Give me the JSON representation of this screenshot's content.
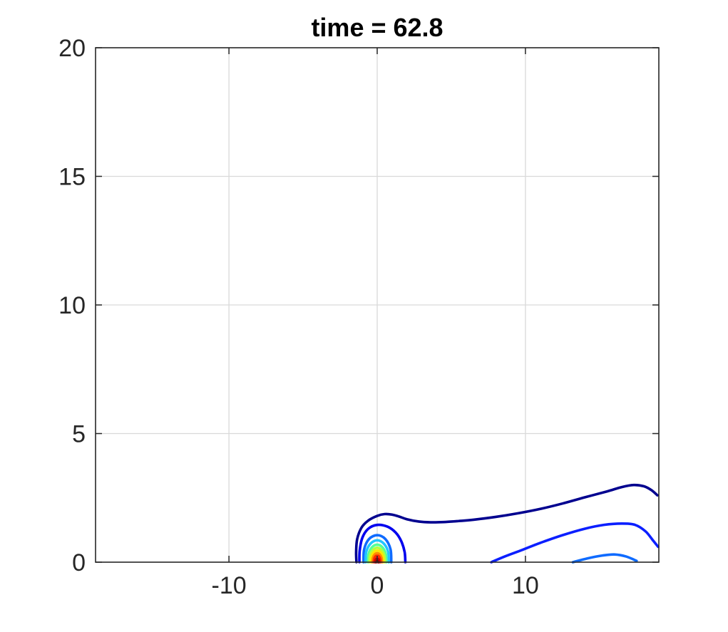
{
  "chart_data": {
    "type": "contour",
    "title": "time = 62.8",
    "xlabel": "",
    "ylabel": "",
    "xlim": [
      -19,
      19
    ],
    "ylim": [
      0,
      20
    ],
    "xticks": [
      -10,
      0,
      10
    ],
    "xtick_labels": [
      "-10",
      "0",
      "10"
    ],
    "yticks": [
      0,
      5,
      10,
      15,
      20
    ],
    "ytick_labels": [
      "0",
      "5",
      "10",
      "15",
      "20"
    ],
    "grid": true,
    "colormap": "jet",
    "levels": [
      {
        "color": "#00008f",
        "points": [
          [
            -1.4,
            0
          ],
          [
            -1.42,
            0.4
          ],
          [
            -1.35,
            0.9
          ],
          [
            -1.05,
            1.35
          ],
          [
            -0.6,
            1.62
          ],
          [
            0,
            1.8
          ],
          [
            0.5,
            1.87
          ],
          [
            1.0,
            1.85
          ],
          [
            1.5,
            1.77
          ],
          [
            2,
            1.67
          ],
          [
            2.8,
            1.58
          ],
          [
            3.6,
            1.55
          ],
          [
            4.5,
            1.56
          ],
          [
            5.5,
            1.6
          ],
          [
            6.5,
            1.65
          ],
          [
            8,
            1.76
          ],
          [
            9.5,
            1.9
          ],
          [
            11,
            2.07
          ],
          [
            12.5,
            2.28
          ],
          [
            14,
            2.52
          ],
          [
            15.5,
            2.75
          ],
          [
            16.5,
            2.92
          ],
          [
            17.3,
            3.0
          ],
          [
            18,
            2.95
          ],
          [
            18.5,
            2.8
          ],
          [
            18.9,
            2.6
          ]
        ]
      },
      {
        "color": "#0000ee",
        "points": [
          [
            -1.2,
            0
          ],
          [
            -1.18,
            0.45
          ],
          [
            -1.0,
            0.95
          ],
          [
            -0.6,
            1.3
          ],
          [
            0,
            1.45
          ],
          [
            0.7,
            1.38
          ],
          [
            1.25,
            1.15
          ],
          [
            1.62,
            0.82
          ],
          [
            1.85,
            0.4
          ],
          [
            1.9,
            0
          ]
        ]
      },
      {
        "color": "#0b1fff",
        "points": [
          [
            7.7,
            0
          ],
          [
            8.6,
            0.22
          ],
          [
            9.8,
            0.48
          ],
          [
            11,
            0.75
          ],
          [
            12.5,
            1.05
          ],
          [
            14,
            1.3
          ],
          [
            15.3,
            1.45
          ],
          [
            16.5,
            1.5
          ],
          [
            17.4,
            1.45
          ],
          [
            18.1,
            1.2
          ],
          [
            18.6,
            0.85
          ],
          [
            18.95,
            0.6
          ]
        ]
      },
      {
        "color": "#0f6bff",
        "points": [
          [
            -0.92,
            0
          ],
          [
            -0.88,
            0.5
          ],
          [
            -0.55,
            0.9
          ],
          [
            0,
            1.05
          ],
          [
            0.55,
            0.9
          ],
          [
            0.9,
            0.5
          ],
          [
            0.95,
            0
          ]
        ]
      },
      {
        "color": "#0f6bff",
        "points": [
          [
            13.2,
            0
          ],
          [
            14.2,
            0.15
          ],
          [
            15.2,
            0.26
          ],
          [
            16,
            0.3
          ],
          [
            16.8,
            0.22
          ],
          [
            17.5,
            0.05
          ]
        ]
      },
      {
        "color": "#22c5ff",
        "points": [
          [
            -0.78,
            0
          ],
          [
            -0.74,
            0.4
          ],
          [
            -0.45,
            0.72
          ],
          [
            0,
            0.85
          ],
          [
            0.45,
            0.72
          ],
          [
            0.74,
            0.4
          ],
          [
            0.78,
            0
          ]
        ]
      },
      {
        "color": "#55ff99",
        "points": [
          [
            -0.62,
            0
          ],
          [
            -0.58,
            0.32
          ],
          [
            -0.35,
            0.58
          ],
          [
            0,
            0.68
          ],
          [
            0.35,
            0.58
          ],
          [
            0.58,
            0.32
          ],
          [
            0.62,
            0
          ]
        ]
      },
      {
        "color": "#b4ff3c",
        "points": [
          [
            -0.52,
            0
          ],
          [
            -0.48,
            0.27
          ],
          [
            -0.28,
            0.48
          ],
          [
            0,
            0.56
          ],
          [
            0.28,
            0.48
          ],
          [
            0.48,
            0.27
          ],
          [
            0.52,
            0
          ]
        ]
      },
      {
        "color": "#ffe600",
        "points": [
          [
            -0.42,
            0
          ],
          [
            -0.38,
            0.22
          ],
          [
            -0.22,
            0.39
          ],
          [
            0,
            0.45
          ],
          [
            0.22,
            0.39
          ],
          [
            0.38,
            0.22
          ],
          [
            0.42,
            0
          ]
        ]
      },
      {
        "color": "#ff8a00",
        "points": [
          [
            -0.32,
            0
          ],
          [
            -0.29,
            0.17
          ],
          [
            -0.17,
            0.3
          ],
          [
            0,
            0.35
          ],
          [
            0.17,
            0.3
          ],
          [
            0.29,
            0.17
          ],
          [
            0.32,
            0
          ]
        ]
      },
      {
        "color": "#ff2a00",
        "points": [
          [
            -0.23,
            0
          ],
          [
            -0.2,
            0.13
          ],
          [
            -0.12,
            0.22
          ],
          [
            0,
            0.25
          ],
          [
            0.12,
            0.22
          ],
          [
            0.2,
            0.13
          ],
          [
            0.23,
            0
          ]
        ]
      },
      {
        "color": "#c80000",
        "points": [
          [
            -0.14,
            0
          ],
          [
            -0.12,
            0.08
          ],
          [
            0,
            0.14
          ],
          [
            0.12,
            0.08
          ],
          [
            0.14,
            0
          ]
        ]
      },
      {
        "color": "#800000",
        "points": [
          [
            -0.06,
            0
          ],
          [
            0,
            0.05
          ],
          [
            0.06,
            0
          ]
        ]
      }
    ]
  }
}
